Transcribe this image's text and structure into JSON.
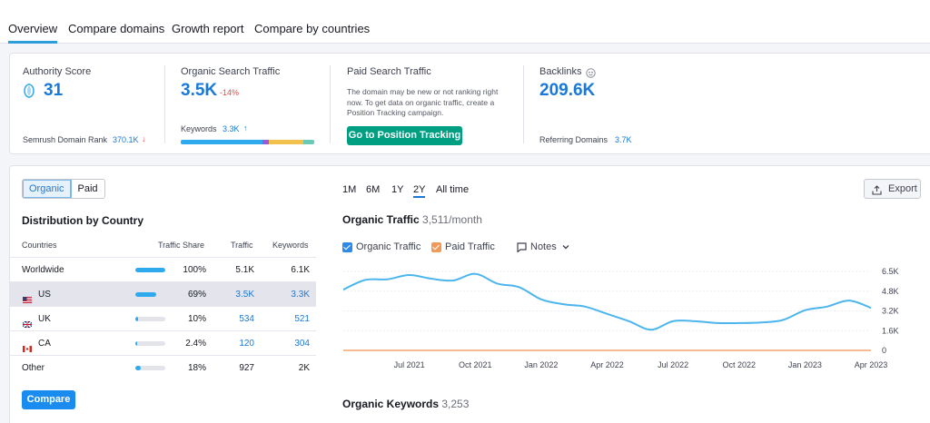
{
  "tabs": [
    {
      "label": "Overview",
      "active": true
    },
    {
      "label": "Compare domains"
    },
    {
      "label": "Growth report"
    },
    {
      "label": "Compare by countries"
    }
  ],
  "summary": {
    "authority": {
      "label": "Authority Score",
      "value": "31",
      "rank_label": "Semrush Domain Rank",
      "rank_value": "370.1K",
      "rank_arrow": "↓"
    },
    "organic": {
      "label": "Organic Search Traffic",
      "value": "3.5K",
      "delta": "-14%",
      "keywords_label": "Keywords",
      "keywords_value": "3.3K",
      "keywords_arrow": "↑"
    },
    "paid": {
      "label": "Paid Search Traffic",
      "description": "The domain may be new or not ranking right now. To get data on organic traffic, create a Position Tracking campaign.",
      "button": "Go to Position Tracking"
    },
    "backlinks": {
      "label": "Backlinks",
      "value": "209.6K",
      "ref_label": "Referring Domains",
      "ref_value": "3.7K"
    }
  },
  "keyword_bar_colors": [
    "#2fa9ee",
    "#9b59d8",
    "#f2c14e",
    "#68c9b6"
  ],
  "keyword_bar_shares": [
    0.61,
    0.05,
    0.26,
    0.08
  ],
  "toggle": {
    "organic": "Organic",
    "paid": "Paid"
  },
  "distribution": {
    "title": "Distribution by Country",
    "columns": [
      "Countries",
      "Traffic Share",
      "Traffic",
      "Keywords"
    ],
    "rows": [
      {
        "country": "Worldwide",
        "share": "100%",
        "share_value": 1.0,
        "traffic": "5.1K",
        "keywords": "6.1K",
        "flag": ""
      },
      {
        "country": "US",
        "share": "69%",
        "share_value": 0.69,
        "traffic": "3.5K",
        "keywords": "3.3K",
        "flag": "us-flag-icon"
      },
      {
        "country": "UK",
        "share": "10%",
        "share_value": 0.1,
        "traffic": "534",
        "keywords": "521",
        "flag": "uk-flag-icon"
      },
      {
        "country": "CA",
        "share": "2.4%",
        "share_value": 0.024,
        "traffic": "120",
        "keywords": "304",
        "flag": "ca-flag-icon"
      },
      {
        "country": "Other",
        "share": "18%",
        "share_value": 0.18,
        "traffic": "927",
        "keywords": "2K",
        "flag": ""
      }
    ],
    "compare_button": "Compare"
  },
  "periods": [
    "1M",
    "6M",
    "1Y",
    "2Y",
    "All time"
  ],
  "active_period": "2Y",
  "export_label": "Export",
  "organic_traffic": {
    "title": "Organic Traffic",
    "value": "3,511/month"
  },
  "legend": {
    "organic": "Organic Traffic",
    "paid": "Paid Traffic",
    "notes": "Notes"
  },
  "organic_keywords": {
    "title": "Organic Keywords",
    "value": "3,253"
  },
  "colors": {
    "accent": "#1a79d8",
    "organic_line": "#4cb5ec",
    "paid_line": "#f0a66e",
    "green_button": "#009f81",
    "delta_red": "#e44a4a"
  },
  "chart_data": {
    "type": "line",
    "x": [
      "2021-04",
      "2021-05",
      "2021-06",
      "2021-07",
      "2021-08",
      "2021-09",
      "2021-10",
      "2021-11",
      "2021-12",
      "2022-01",
      "2022-02",
      "2022-03",
      "2022-04",
      "2022-05",
      "2022-06",
      "2022-07",
      "2022-08",
      "2022-09",
      "2022-10",
      "2022-11",
      "2022-12",
      "2023-01",
      "2023-02",
      "2023-03",
      "2023-04"
    ],
    "x_tick_labels": [
      "Jul 2021",
      "Oct 2021",
      "Jan 2022",
      "Apr 2022",
      "Jul 2022",
      "Oct 2022",
      "Jan 2023",
      "Apr 2023"
    ],
    "y_tick_labels": [
      "6.5K",
      "4.8K",
      "3.2K",
      "1.6K",
      "0"
    ],
    "ylim": [
      0,
      6500
    ],
    "series": [
      {
        "name": "Organic Traffic",
        "values": [
          5000,
          5800,
          5850,
          6200,
          5900,
          5750,
          6300,
          5500,
          5200,
          4200,
          3800,
          3600,
          3000,
          2400,
          1700,
          2400,
          2400,
          2250,
          2250,
          2300,
          2500,
          3300,
          3600,
          4100,
          3500
        ]
      },
      {
        "name": "Paid Traffic",
        "values": [
          0,
          0,
          0,
          0,
          0,
          0,
          0,
          0,
          0,
          0,
          0,
          0,
          0,
          0,
          0,
          0,
          0,
          0,
          0,
          0,
          0,
          0,
          0,
          0,
          0
        ]
      }
    ],
    "grid": true
  }
}
